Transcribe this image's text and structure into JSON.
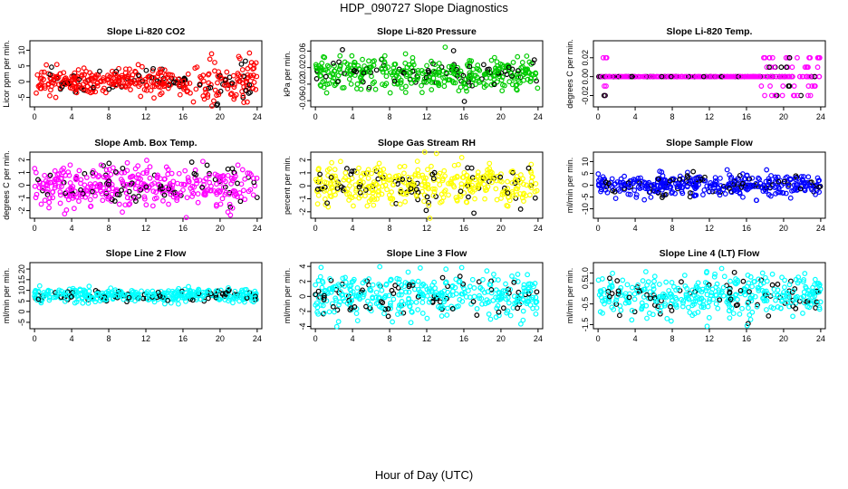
{
  "page": {
    "title": "HDP_090727  Slope Diagnostics",
    "xlabel": "Hour of Day (UTC)"
  },
  "chart_data": [
    {
      "type": "scatter",
      "title": "Slope Li-820 CO2",
      "ylabel": "Licor ppm per min.",
      "color": "#ff0000",
      "xlim": [
        -0.5,
        24.5
      ],
      "ylim": [
        -8,
        13
      ],
      "yticks": [
        "-5",
        "0",
        "5",
        "10"
      ],
      "ytick_values": [
        -5,
        0,
        5,
        10
      ],
      "xticks": [
        0,
        4,
        8,
        12,
        16,
        20,
        24
      ],
      "typical_spread": 2.0,
      "pattern": "co2"
    },
    {
      "type": "scatter",
      "title": "Slope Li-820 Pressure",
      "ylabel": "kPa per min.",
      "color": "#00cc00",
      "xlim": [
        -0.5,
        24.5
      ],
      "ylim": [
        -0.075,
        0.085
      ],
      "yticks": [
        "-0.06",
        "-0.02",
        "0.02",
        "0.06"
      ],
      "ytick_values": [
        -0.06,
        -0.02,
        0.02,
        0.06
      ],
      "xticks": [
        0,
        4,
        8,
        12,
        16,
        20,
        24
      ],
      "typical_spread": 0.02,
      "pattern": "normal"
    },
    {
      "type": "scatter",
      "title": "Slope Li-820 Temp.",
      "ylabel": "degrees C per min.",
      "color": "#ff00ff",
      "xlim": [
        -0.5,
        24.5
      ],
      "ylim": [
        -0.032,
        0.038
      ],
      "yticks": [
        "-0.02",
        "0.00",
        "0.02"
      ],
      "ytick_values": [
        -0.02,
        0.0,
        0.02
      ],
      "xticks": [
        0,
        4,
        8,
        12,
        16,
        20,
        24
      ],
      "typical_spread": 0.0,
      "pattern": "temp"
    },
    {
      "type": "scatter",
      "title": "Slope Amb. Box Temp.",
      "ylabel": "degrees C per min.",
      "color": "#ff00ff",
      "xlim": [
        -0.5,
        24.5
      ],
      "ylim": [
        -2.6,
        2.6
      ],
      "yticks": [
        "-2",
        "-1",
        "0",
        "1",
        "2"
      ],
      "ytick_values": [
        -2,
        -1,
        0,
        1,
        2
      ],
      "xticks": [
        0,
        4,
        8,
        12,
        16,
        20,
        24
      ],
      "typical_spread": 0.8,
      "pattern": "normal"
    },
    {
      "type": "scatter",
      "title": "Slope Gas Stream RH",
      "ylabel": "percent per min.",
      "color": "#ffff00",
      "xlim": [
        -0.5,
        24.5
      ],
      "ylim": [
        -2.5,
        2.6
      ],
      "yticks": [
        "-2",
        "-1",
        "0",
        "1",
        "2"
      ],
      "ytick_values": [
        -2,
        -1,
        0,
        1,
        2
      ],
      "xticks": [
        0,
        4,
        8,
        12,
        16,
        20,
        24
      ],
      "typical_spread": 0.85,
      "pattern": "normal"
    },
    {
      "type": "scatter",
      "title": "Slope Sample Flow",
      "ylabel": "ml/min per min.",
      "color": "#0000ff",
      "xlim": [
        -0.5,
        24.5
      ],
      "ylim": [
        -14,
        14
      ],
      "yticks": [
        "-10",
        "-5",
        "0",
        "5",
        "10"
      ],
      "ytick_values": [
        -10,
        -5,
        0,
        5,
        10
      ],
      "xticks": [
        0,
        4,
        8,
        12,
        16,
        20,
        24
      ],
      "typical_spread": 2.2,
      "pattern": "normal"
    },
    {
      "type": "scatter",
      "title": "Slope Line 2 Flow",
      "ylabel": "ml/min per min.",
      "color": "#00ffff",
      "xlim": [
        -0.5,
        24.5
      ],
      "ylim": [
        -8,
        23
      ],
      "yticks": [
        "-5",
        "0",
        "5",
        "10",
        "15",
        "20"
      ],
      "ytick_values": [
        -5,
        0,
        5,
        10,
        15,
        20
      ],
      "xticks": [
        0,
        4,
        8,
        12,
        16,
        20,
        24
      ],
      "typical_spread": 1.6,
      "pattern": "normal"
    },
    {
      "type": "scatter",
      "title": "Slope Line 3 Flow",
      "ylabel": "ml/min per min.",
      "color": "#00ffff",
      "xlim": [
        -0.5,
        24.5
      ],
      "ylim": [
        -4.3,
        4.5
      ],
      "yticks": [
        "-4",
        "-2",
        "0",
        "2",
        "4"
      ],
      "ytick_values": [
        -4,
        -2,
        0,
        2,
        4
      ],
      "xticks": [
        0,
        4,
        8,
        12,
        16,
        20,
        24
      ],
      "typical_spread": 1.4,
      "pattern": "normal"
    },
    {
      "type": "scatter",
      "title": "Slope Line 4 (LT) Flow",
      "ylabel": "ml/min per min.",
      "color": "#00ffff",
      "xlim": [
        -0.5,
        24.5
      ],
      "ylim": [
        -1.7,
        1.5
      ],
      "yticks": [
        "-1.5",
        "-0.5",
        "0.5",
        "1.0"
      ],
      "ytick_values": [
        -1.5,
        -0.5,
        0.5,
        1.0
      ],
      "xticks": [
        0,
        4,
        8,
        12,
        16,
        20,
        24
      ],
      "typical_spread": 0.5,
      "pattern": "normal"
    }
  ]
}
